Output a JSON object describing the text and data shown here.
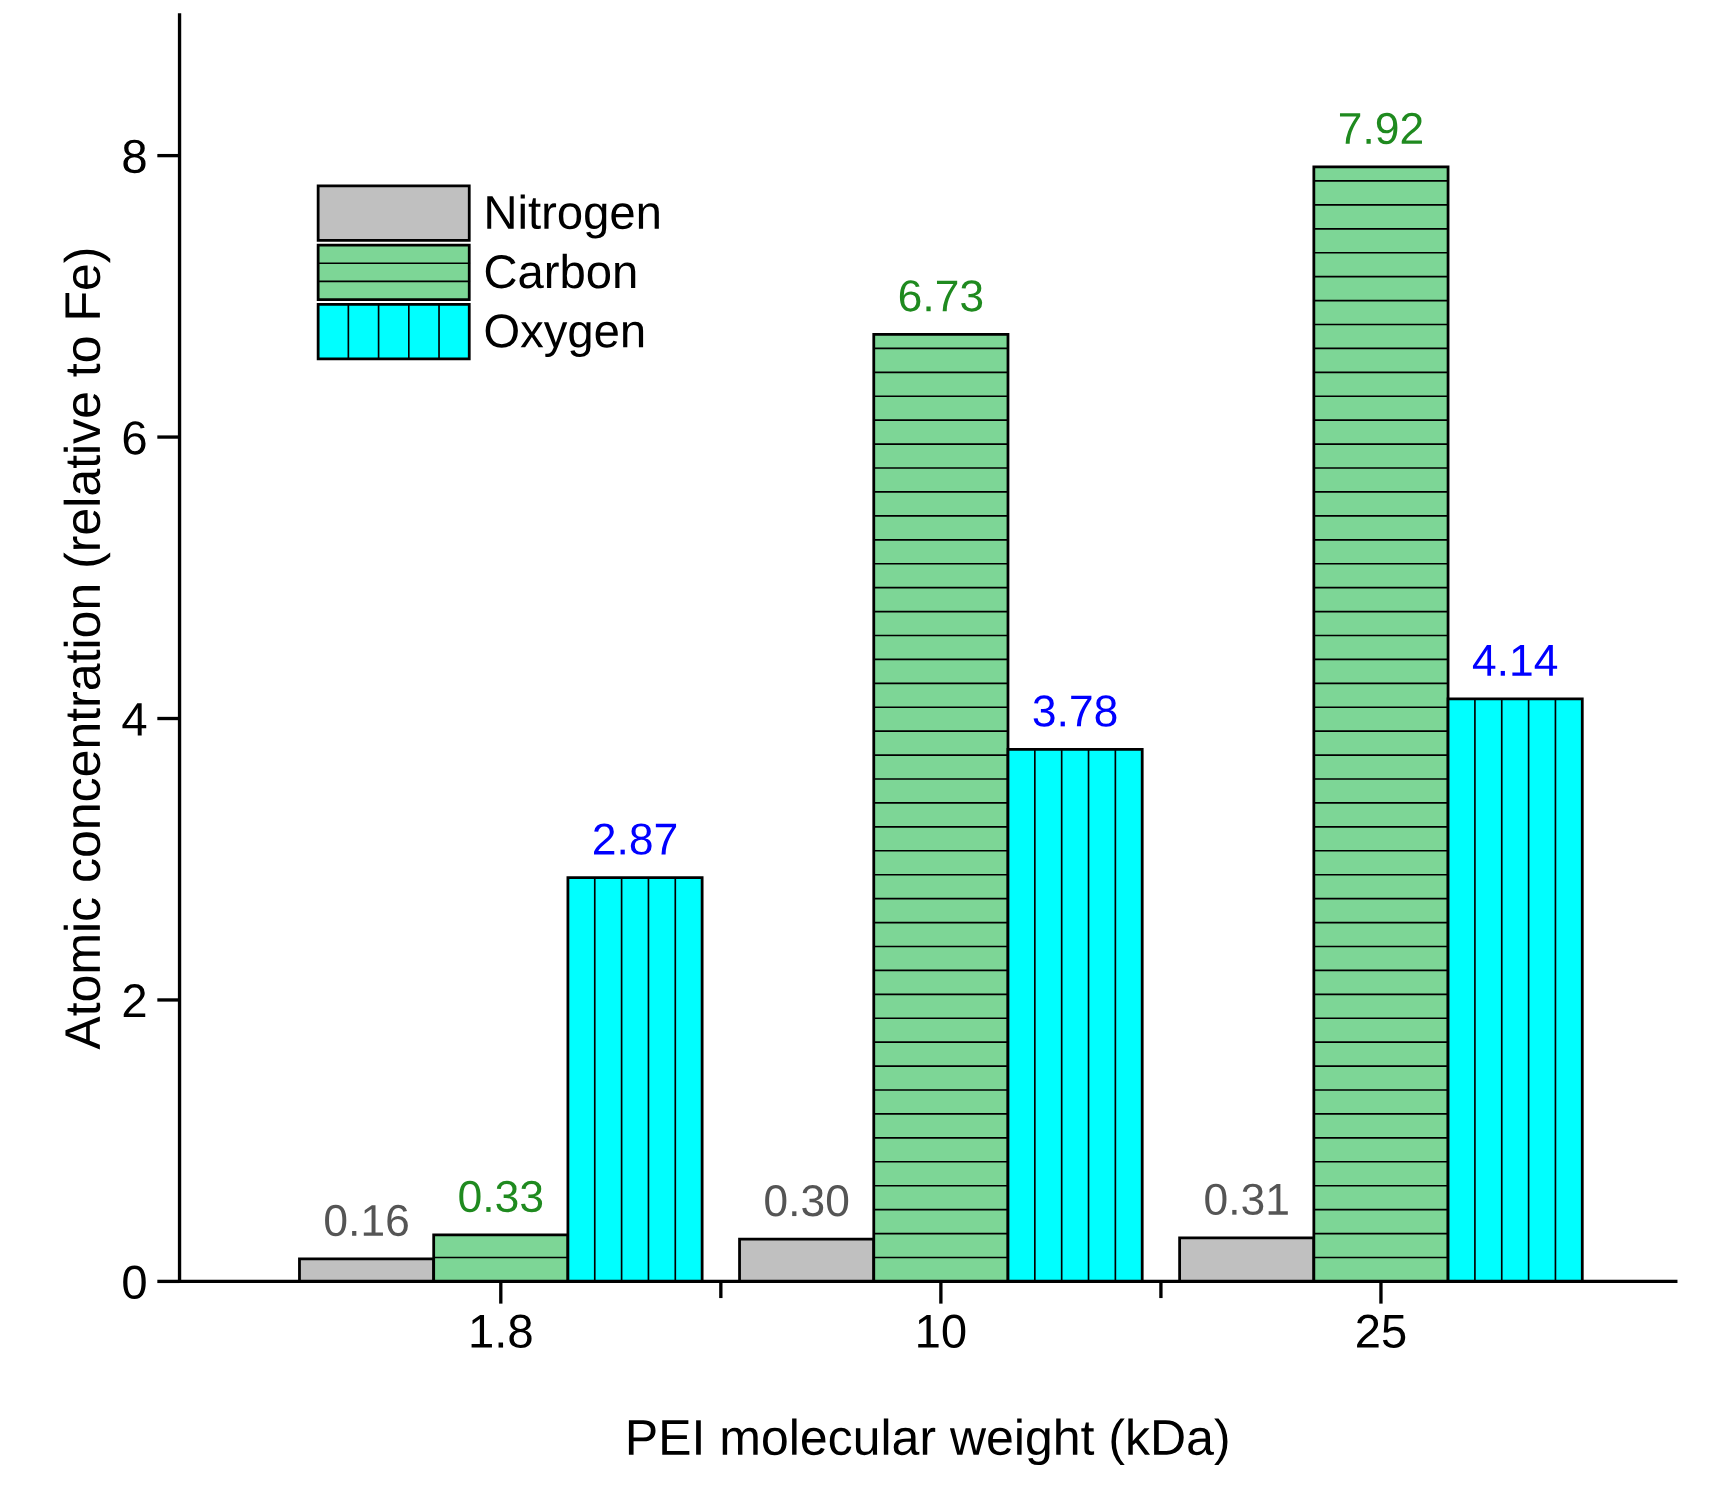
{
  "chart_data": {
    "type": "bar",
    "categories": [
      "1.8",
      "10",
      "25"
    ],
    "xlabel": "PEI molecular weight (kDa)",
    "ylabel": "Atomic concentration (relative to Fe)",
    "ylim": [
      0,
      9
    ],
    "yticks": [
      0,
      2,
      4,
      6,
      8
    ],
    "legend": "top left",
    "grid": false,
    "series": [
      {
        "name": "Nitrogen",
        "color": "#c0c0c0",
        "values": [
          0.16,
          0.3,
          0.31
        ],
        "value_labels": [
          "0.16",
          "0.30",
          "0.31"
        ]
      },
      {
        "name": "Carbon",
        "color": "#7dd696",
        "values": [
          0.33,
          6.73,
          7.92
        ],
        "value_labels": [
          "0.33",
          "6.73",
          "7.92"
        ]
      },
      {
        "name": "Oxygen",
        "color": "#00ffff",
        "values": [
          2.87,
          3.78,
          4.14
        ],
        "value_labels": [
          "2.87",
          "3.78",
          "4.14"
        ]
      }
    ]
  }
}
